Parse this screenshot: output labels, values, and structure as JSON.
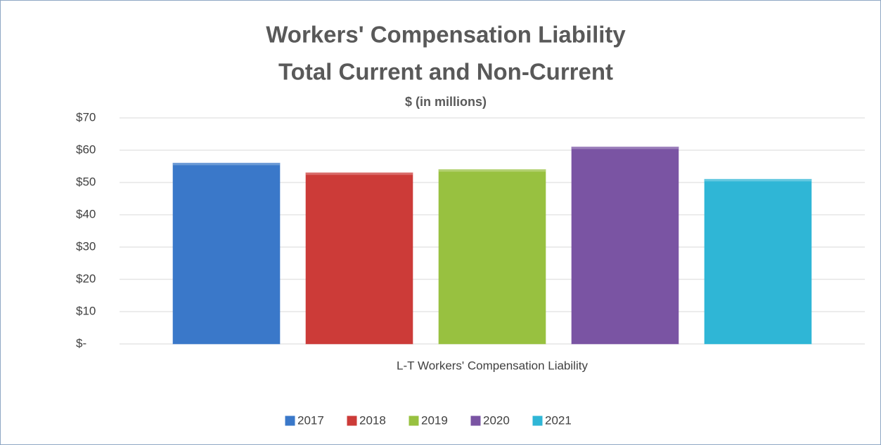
{
  "chart_data": {
    "type": "bar",
    "title": [
      "Workers' Compensation Liability",
      "Total Current and Non-Current"
    ],
    "subtitle": "$ (in millions)",
    "categories": [
      "L-T Workers' Compensation Liability"
    ],
    "series": [
      {
        "name": "2017",
        "color": "#3a78c9",
        "values": [
          56
        ]
      },
      {
        "name": "2018",
        "color": "#cc3b38",
        "values": [
          53
        ]
      },
      {
        "name": "2019",
        "color": "#98c140",
        "values": [
          54
        ]
      },
      {
        "name": "2020",
        "color": "#7a54a3",
        "values": [
          61
        ]
      },
      {
        "name": "2021",
        "color": "#2fb6d6",
        "values": [
          51
        ]
      }
    ],
    "ylim": [
      0,
      70
    ],
    "yticks": [
      {
        "value": 0,
        "label": "$-"
      },
      {
        "value": 10,
        "label": "$10"
      },
      {
        "value": 20,
        "label": "$20"
      },
      {
        "value": 30,
        "label": "$30"
      },
      {
        "value": 40,
        "label": "$40"
      },
      {
        "value": 50,
        "label": "$50"
      },
      {
        "value": 60,
        "label": "$60"
      },
      {
        "value": 70,
        "label": "$70"
      }
    ],
    "grid": true,
    "legend": "bottom"
  }
}
